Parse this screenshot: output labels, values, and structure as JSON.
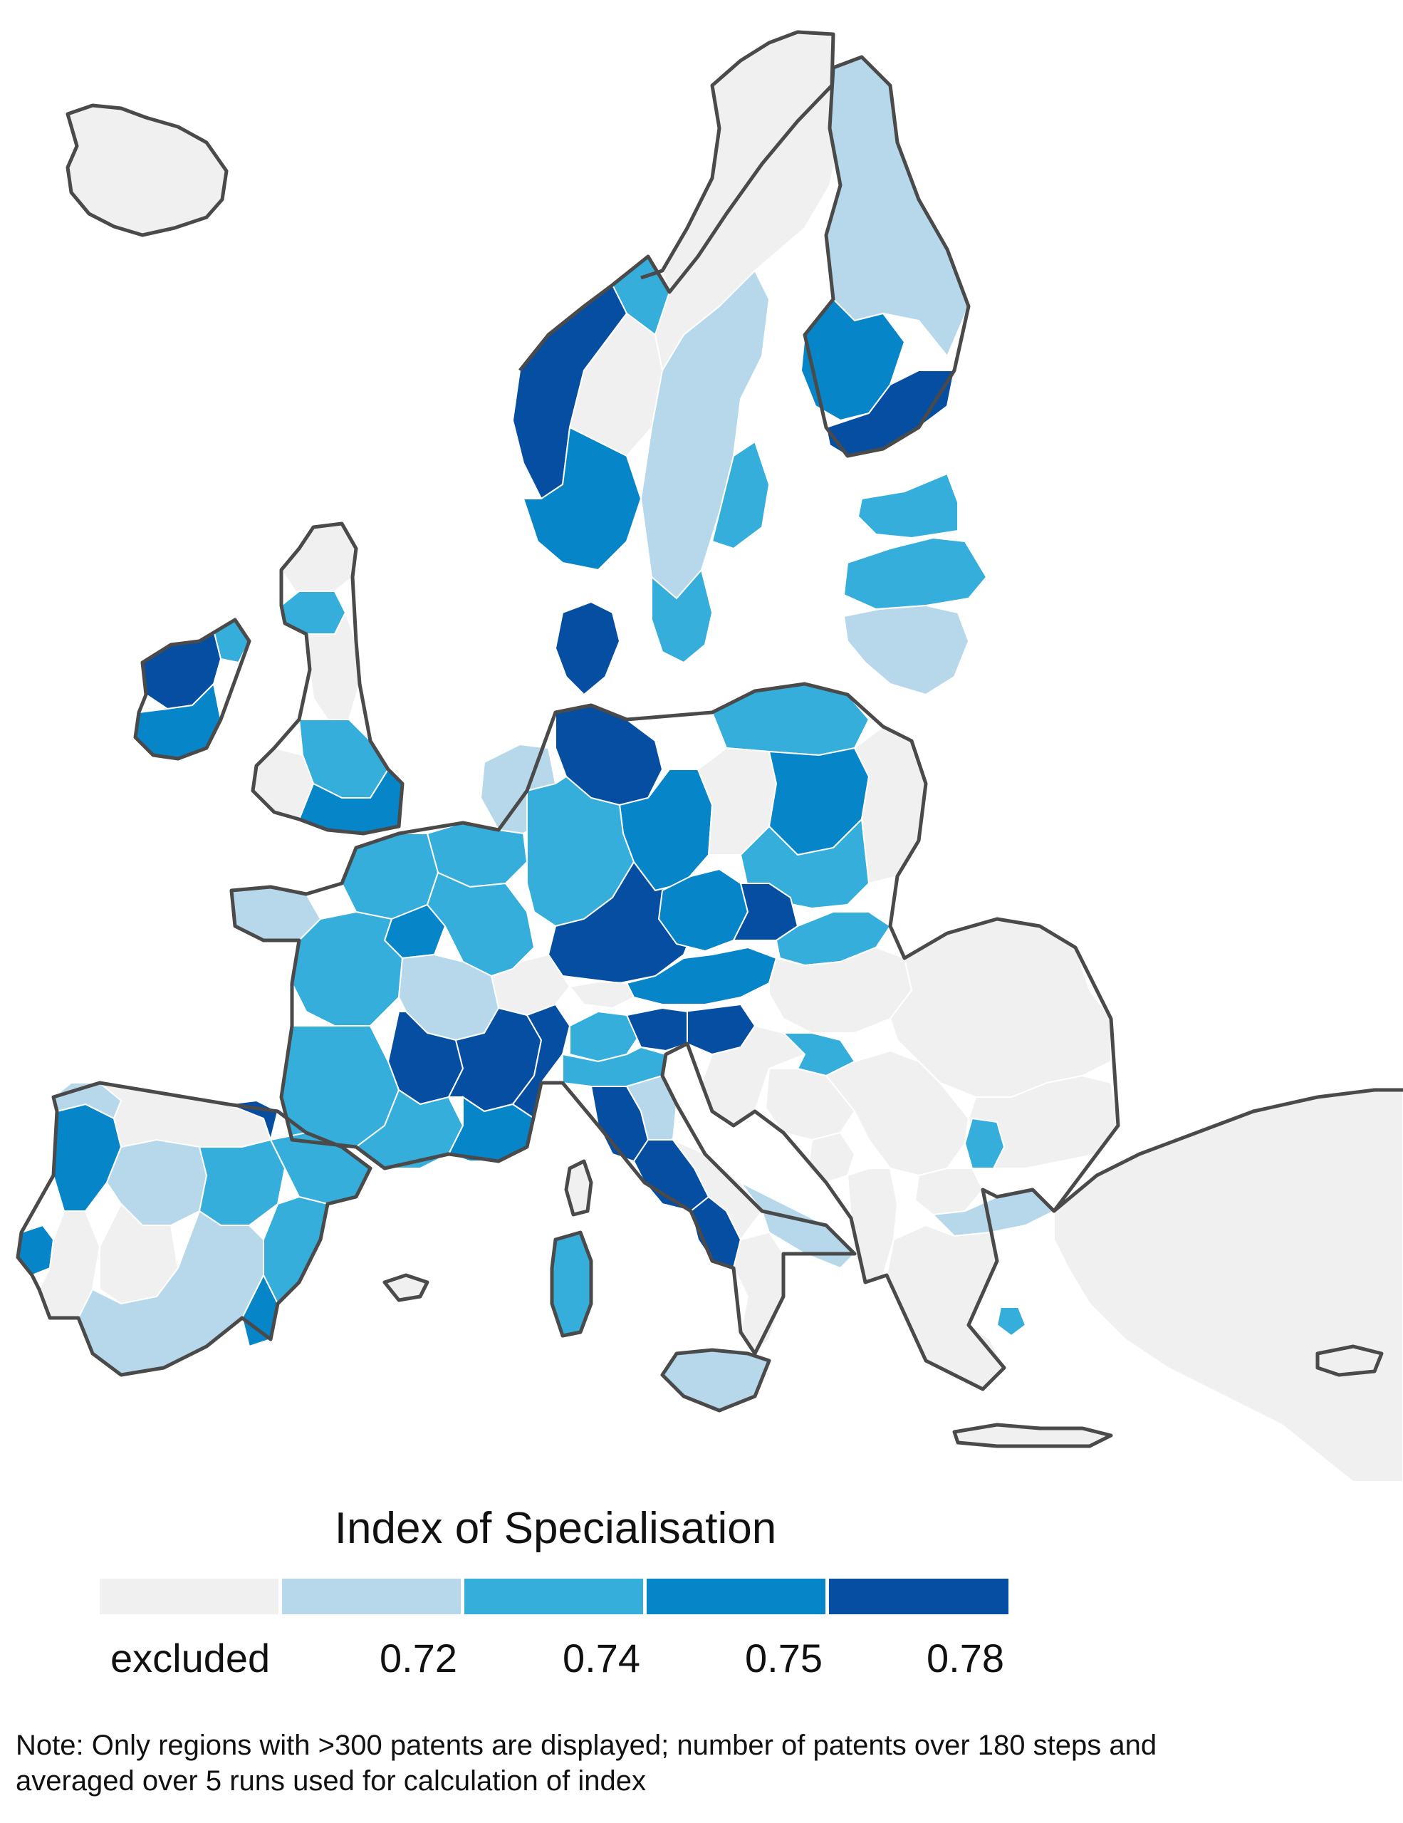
{
  "legend": {
    "title": "Index of Specialisation",
    "bins": [
      {
        "label": "excluded",
        "color": "#f0f0f0"
      },
      {
        "label": "0.72",
        "color": "#b6d8ea"
      },
      {
        "label": "0.74",
        "color": "#35aedb"
      },
      {
        "label": "0.75",
        "color": "#0785c9"
      },
      {
        "label": "0.78",
        "color": "#064ea2"
      }
    ]
  },
  "note": {
    "line1": "Note: Only regions with >300 patents are displayed; number of patents over 180 steps and",
    "line2": "averaged over 5 runs used for calculation of index"
  },
  "map": {
    "border_color": "#4a4a4a",
    "region_line_color": "#ffffff",
    "regions": [
      {
        "name": "iceland",
        "cls": "excluded"
      },
      {
        "name": "norway-north",
        "cls": "excluded"
      },
      {
        "name": "norway-west",
        "cls": "0.78"
      },
      {
        "name": "norway-mid",
        "cls": "0.74"
      },
      {
        "name": "norway-east",
        "cls": "excluded"
      },
      {
        "name": "norway-south",
        "cls": "0.75"
      },
      {
        "name": "sweden-north",
        "cls": "excluded"
      },
      {
        "name": "sweden-mid",
        "cls": "0.72"
      },
      {
        "name": "sweden-east",
        "cls": "0.74"
      },
      {
        "name": "sweden-south",
        "cls": "0.74"
      },
      {
        "name": "finland-north",
        "cls": "0.72"
      },
      {
        "name": "finland-west",
        "cls": "0.75"
      },
      {
        "name": "finland-south",
        "cls": "0.78"
      },
      {
        "name": "estonia",
        "cls": "0.74"
      },
      {
        "name": "latvia",
        "cls": "0.74"
      },
      {
        "name": "lithuania",
        "cls": "0.72"
      },
      {
        "name": "scotland",
        "cls": "excluded"
      },
      {
        "name": "scotland-central",
        "cls": "0.74"
      },
      {
        "name": "england-north",
        "cls": "excluded"
      },
      {
        "name": "england-midlands",
        "cls": "0.74"
      },
      {
        "name": "england-southeast",
        "cls": "0.75"
      },
      {
        "name": "wales",
        "cls": "excluded"
      },
      {
        "name": "ireland-north",
        "cls": "0.74"
      },
      {
        "name": "ireland-west",
        "cls": "0.78"
      },
      {
        "name": "ireland-south",
        "cls": "0.75"
      },
      {
        "name": "denmark",
        "cls": "0.78"
      },
      {
        "name": "netherlands",
        "cls": "0.72"
      },
      {
        "name": "belgium",
        "cls": "0.74"
      },
      {
        "name": "germany-north",
        "cls": "0.78"
      },
      {
        "name": "germany-east",
        "cls": "0.75"
      },
      {
        "name": "germany-west",
        "cls": "0.74"
      },
      {
        "name": "germany-south",
        "cls": "0.78"
      },
      {
        "name": "poland-north",
        "cls": "0.74"
      },
      {
        "name": "poland-west",
        "cls": "excluded"
      },
      {
        "name": "poland-central",
        "cls": "0.75"
      },
      {
        "name": "poland-east",
        "cls": "excluded"
      },
      {
        "name": "poland-south",
        "cls": "0.74"
      },
      {
        "name": "czechia",
        "cls": "0.75"
      },
      {
        "name": "czechia-east",
        "cls": "0.78"
      },
      {
        "name": "slovakia",
        "cls": "0.74"
      },
      {
        "name": "austria",
        "cls": "0.75"
      },
      {
        "name": "austria-west",
        "cls": "excluded"
      },
      {
        "name": "switzerland",
        "cls": "excluded"
      },
      {
        "name": "hungary",
        "cls": "excluded"
      },
      {
        "name": "slovenia",
        "cls": "0.78"
      },
      {
        "name": "croatia",
        "cls": "excluded"
      },
      {
        "name": "croatia-east",
        "cls": "0.74"
      },
      {
        "name": "romania",
        "cls": "excluded"
      },
      {
        "name": "bulgaria",
        "cls": "excluded"
      },
      {
        "name": "sofia",
        "cls": "0.74"
      },
      {
        "name": "serbia",
        "cls": "excluded"
      },
      {
        "name": "bosnia",
        "cls": "excluded"
      },
      {
        "name": "montenegro",
        "cls": "excluded"
      },
      {
        "name": "macedonia",
        "cls": "excluded"
      },
      {
        "name": "albania",
        "cls": "excluded"
      },
      {
        "name": "greece-north",
        "cls": "0.72"
      },
      {
        "name": "greece",
        "cls": "excluded"
      },
      {
        "name": "attica",
        "cls": "0.74"
      },
      {
        "name": "crete",
        "cls": "excluded"
      },
      {
        "name": "turkey-west",
        "cls": "excluded"
      },
      {
        "name": "cyprus",
        "cls": "excluded"
      },
      {
        "name": "france-north",
        "cls": "0.74"
      },
      {
        "name": "brittany",
        "cls": "0.72"
      },
      {
        "name": "paris",
        "cls": "0.75"
      },
      {
        "name": "france-northeast",
        "cls": "0.74"
      },
      {
        "name": "france-west",
        "cls": "0.74"
      },
      {
        "name": "france-central",
        "cls": "0.72"
      },
      {
        "name": "auvergne",
        "cls": "0.78"
      },
      {
        "name": "rhone-alpes",
        "cls": "0.78"
      },
      {
        "name": "france-southwest",
        "cls": "0.74"
      },
      {
        "name": "occitanie",
        "cls": "0.74"
      },
      {
        "name": "provence",
        "cls": "0.75"
      },
      {
        "name": "italy-northwest",
        "cls": "0.78"
      },
      {
        "name": "lombardy",
        "cls": "0.74"
      },
      {
        "name": "veneto",
        "cls": "0.78"
      },
      {
        "name": "emilia",
        "cls": "0.74"
      },
      {
        "name": "tuscany",
        "cls": "0.78"
      },
      {
        "name": "marche",
        "cls": "0.72"
      },
      {
        "name": "lazio",
        "cls": "0.78"
      },
      {
        "name": "campania",
        "cls": "0.78"
      },
      {
        "name": "italy-south",
        "cls": "excluded"
      },
      {
        "name": "puglia",
        "cls": "0.72"
      },
      {
        "name": "calabria",
        "cls": "excluded"
      },
      {
        "name": "sicily",
        "cls": "0.72"
      },
      {
        "name": "sardinia",
        "cls": "0.74"
      },
      {
        "name": "corsica",
        "cls": "excluded"
      },
      {
        "name": "portugal-north",
        "cls": "0.75"
      },
      {
        "name": "lisbon",
        "cls": "0.75"
      },
      {
        "name": "portugal-south",
        "cls": "excluded"
      },
      {
        "name": "galicia",
        "cls": "0.72"
      },
      {
        "name": "spain-north",
        "cls": "excluded"
      },
      {
        "name": "basque",
        "cls": "0.78"
      },
      {
        "name": "spain-central",
        "cls": "0.72"
      },
      {
        "name": "madrid",
        "cls": "0.74"
      },
      {
        "name": "catalonia",
        "cls": "0.74"
      },
      {
        "name": "valencia",
        "cls": "0.74"
      },
      {
        "name": "extremadura",
        "cls": "excluded"
      },
      {
        "name": "andalusia",
        "cls": "0.72"
      },
      {
        "name": "murcia",
        "cls": "0.75"
      },
      {
        "name": "balearic",
        "cls": "excluded"
      }
    ]
  }
}
